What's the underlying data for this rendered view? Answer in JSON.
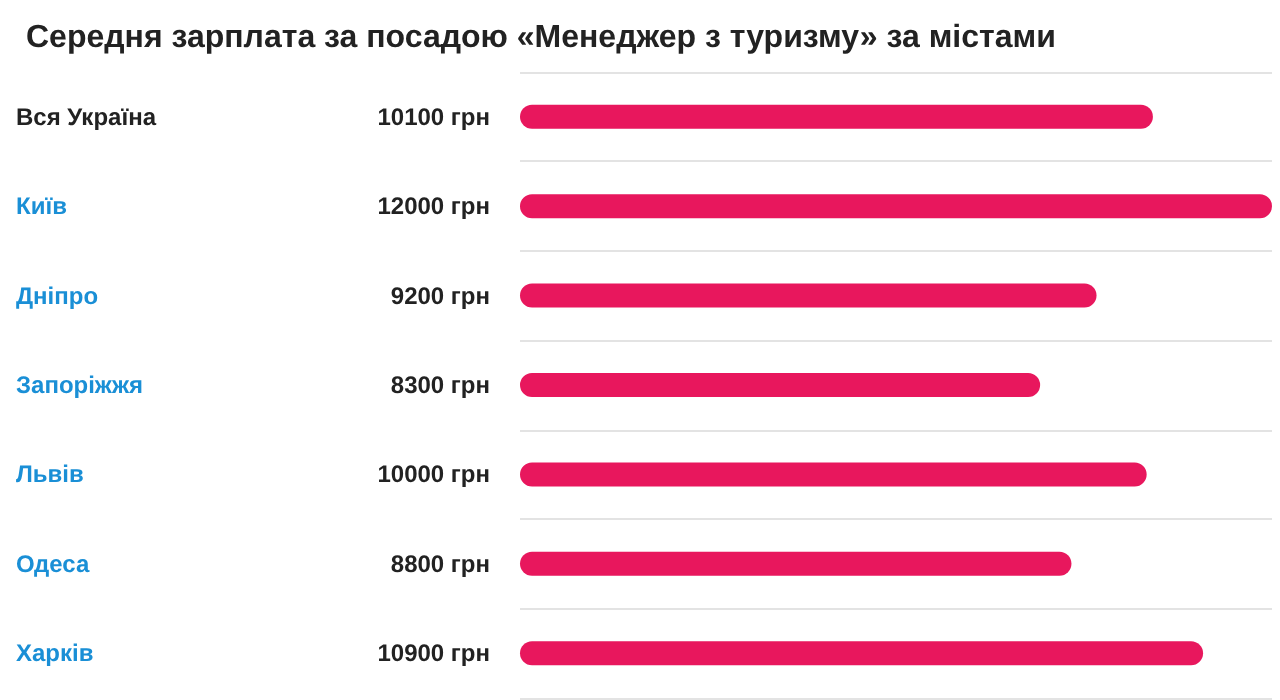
{
  "chart_data": {
    "type": "bar",
    "orientation": "horizontal",
    "title": "Середня зарплата за посадою «Менеджер з туризму» за містами",
    "categories": [
      "Вся Україна",
      "Київ",
      "Дніпро",
      "Запоріжжя",
      "Львів",
      "Одеса",
      "Харків"
    ],
    "values": [
      10100,
      12000,
      9200,
      8300,
      10000,
      8800,
      10900
    ],
    "value_labels": [
      "10100 грн",
      "12000 грн",
      "9200 грн",
      "8300 грн",
      "10000 грн",
      "8800 грн",
      "10900 грн"
    ],
    "color": "#e8175d",
    "grid": "y"
  }
}
